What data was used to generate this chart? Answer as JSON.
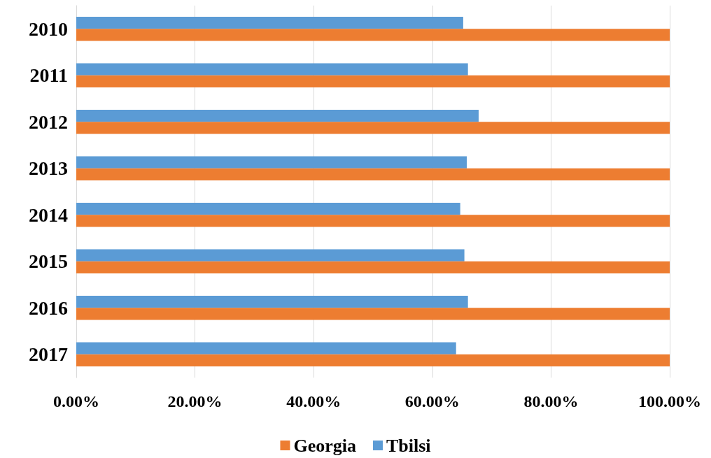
{
  "chart_data": {
    "type": "bar",
    "orientation": "horizontal",
    "categories": [
      "2010",
      "2011",
      "2012",
      "2013",
      "2014",
      "2015",
      "2016",
      "2017"
    ],
    "series": [
      {
        "name": "Georgia",
        "color": "#ed7d31",
        "values": [
          100,
          100,
          100,
          100,
          100,
          100,
          100,
          100
        ]
      },
      {
        "name": "Tbilsi",
        "color": "#5b9bd5",
        "values": [
          65.2,
          66.0,
          67.8,
          65.8,
          64.7,
          65.4,
          66.0,
          64.0
        ]
      }
    ],
    "xlim": [
      0,
      100
    ],
    "xticks": [
      {
        "value": 0,
        "label": "0.00%"
      },
      {
        "value": 20,
        "label": "20.00%"
      },
      {
        "value": 40,
        "label": "40.00%"
      },
      {
        "value": 60,
        "label": "60.00%"
      },
      {
        "value": 80,
        "label": "80.00%"
      },
      {
        "value": 100,
        "label": "100.00%"
      }
    ],
    "grid": "x",
    "legend": "bottom"
  }
}
